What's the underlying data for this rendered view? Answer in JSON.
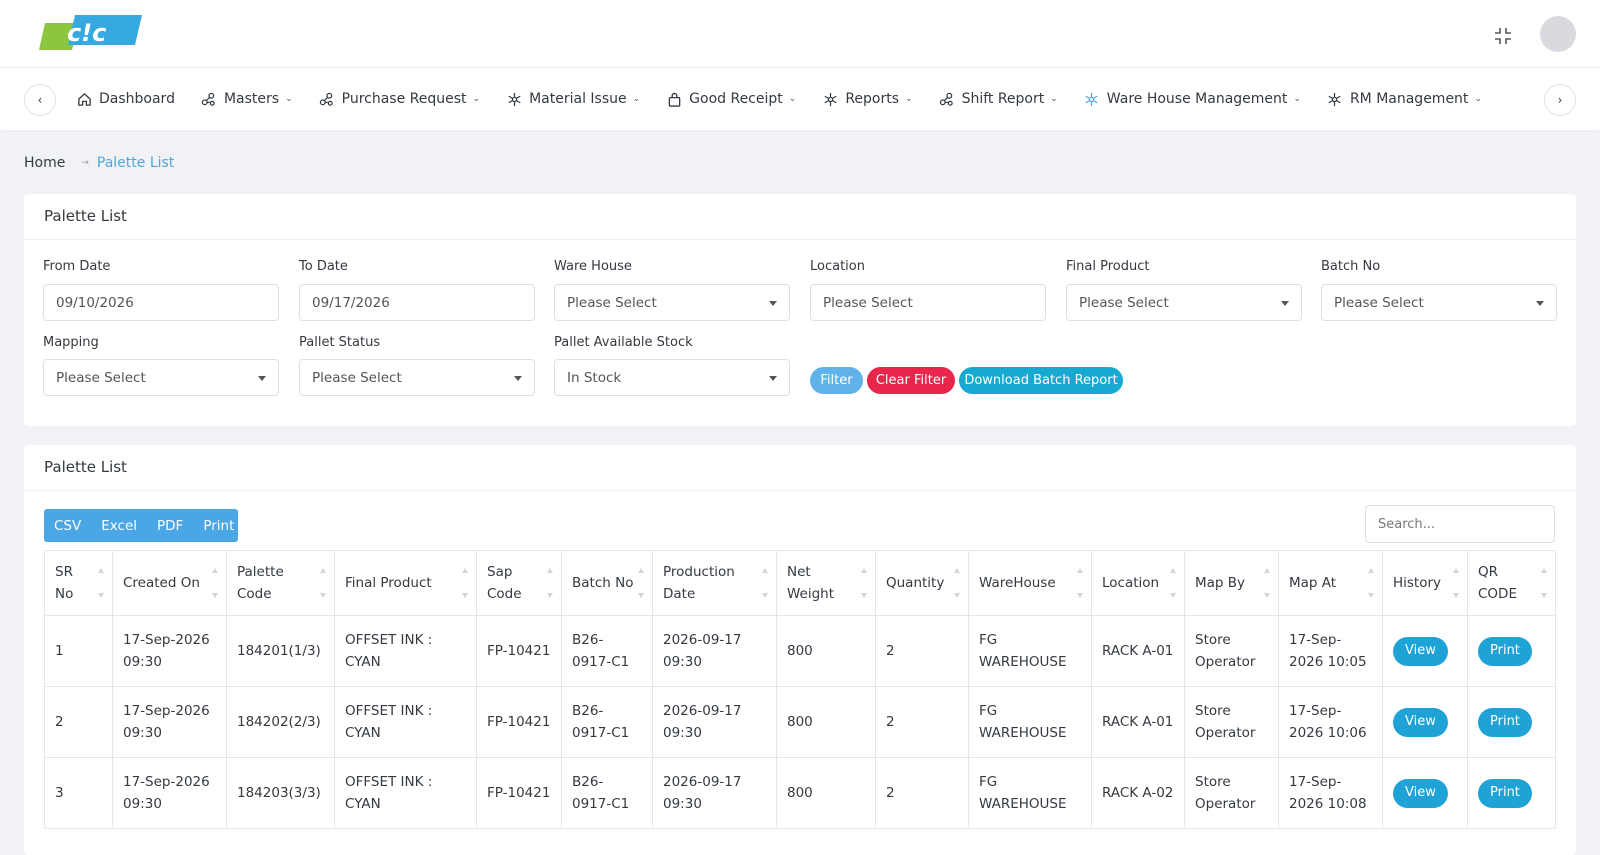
{
  "header": {
    "logo_text": "cic"
  },
  "nav": {
    "items": [
      {
        "label": "Dashboard",
        "icon": "home-icon",
        "dropdown": false
      },
      {
        "label": "Masters",
        "icon": "nodes-icon",
        "dropdown": true
      },
      {
        "label": "Purchase Request",
        "icon": "nodes-icon",
        "dropdown": true
      },
      {
        "label": "Material Issue",
        "icon": "snowflake-icon",
        "dropdown": true
      },
      {
        "label": "Good Receipt",
        "icon": "bag-icon",
        "dropdown": true
      },
      {
        "label": "Reports",
        "icon": "snowflake-icon",
        "dropdown": true
      },
      {
        "label": "Shift Report",
        "icon": "nodes-icon",
        "dropdown": true
      },
      {
        "label": "Ware House Management",
        "icon": "snowflake-icon",
        "dropdown": true
      },
      {
        "label": "RM Management",
        "icon": "snowflake-icon",
        "dropdown": true
      }
    ]
  },
  "breadcrumb": {
    "home": "Home",
    "current": "Palette List"
  },
  "filters": {
    "title": "Palette List",
    "from_date": {
      "label": "From Date",
      "value": "09/10/2026"
    },
    "to_date": {
      "label": "To Date",
      "value": "09/17/2026"
    },
    "warehouse": {
      "label": "Ware House",
      "value": "Please Select"
    },
    "location": {
      "label": "Location",
      "value": "Please Select"
    },
    "final_product": {
      "label": "Final Product",
      "value": "Please Select"
    },
    "batch_no": {
      "label": "Batch No",
      "value": "Please Select"
    },
    "mapping": {
      "label": "Mapping",
      "value": "Please Select"
    },
    "pallet_status": {
      "label": "Pallet Status",
      "value": "Please Select"
    },
    "available_stock": {
      "label": "Pallet Available Stock",
      "value": "In Stock"
    },
    "filter_button": "Filter",
    "clear_button": "Clear Filter",
    "download_button": "Download Batch Report"
  },
  "list": {
    "title": "Palette List",
    "exports": [
      "CSV",
      "Excel",
      "PDF",
      "Print"
    ],
    "search_placeholder": "Search...",
    "columns": [
      "SR No",
      "Created On",
      "Palette Code",
      "Final Product",
      "Sap Code",
      "Batch No",
      "Production Date",
      "Net Weight",
      "Quantity",
      "WareHouse",
      "Location",
      "Map By",
      "Map At",
      "History",
      "QR CODE"
    ],
    "rows": [
      {
        "sr": "1",
        "created": "17-Sep-2026 09:30",
        "code": "184201(1/3)",
        "product": "OFFSET INK : CYAN",
        "sap": "FP-10421",
        "batch": "B26-0917-C1",
        "prod_date": "2026-09-17 09:30",
        "weight": "800",
        "qty": "2",
        "warehouse": "FG WAREHOUSE",
        "location": "RACK A-01",
        "map_by": "Store Operator",
        "map_at": "17-Sep-2026 10:05",
        "history": "View",
        "qr": "Print"
      },
      {
        "sr": "2",
        "created": "17-Sep-2026 09:30",
        "code": "184202(2/3)",
        "product": "OFFSET INK : CYAN",
        "sap": "FP-10421",
        "batch": "B26-0917-C1",
        "prod_date": "2026-09-17 09:30",
        "weight": "800",
        "qty": "2",
        "warehouse": "FG WAREHOUSE",
        "location": "RACK A-01",
        "map_by": "Store Operator",
        "map_at": "17-Sep-2026 10:06",
        "history": "View",
        "qr": "Print"
      },
      {
        "sr": "3",
        "created": "17-Sep-2026 09:30",
        "code": "184203(3/3)",
        "product": "OFFSET INK : CYAN",
        "sap": "FP-10421",
        "batch": "B26-0917-C1",
        "prod_date": "2026-09-17 09:30",
        "weight": "800",
        "qty": "2",
        "warehouse": "FG WAREHOUSE",
        "location": "RACK A-02",
        "map_by": "Store Operator",
        "map_at": "17-Sep-2026 10:08",
        "history": "View",
        "qr": "Print"
      }
    ]
  },
  "colors": {
    "filter": "#5fb3e9",
    "clear": "#e8254a",
    "download": "#17a9d2",
    "breadcrumb_current": "#4fa6dd"
  }
}
